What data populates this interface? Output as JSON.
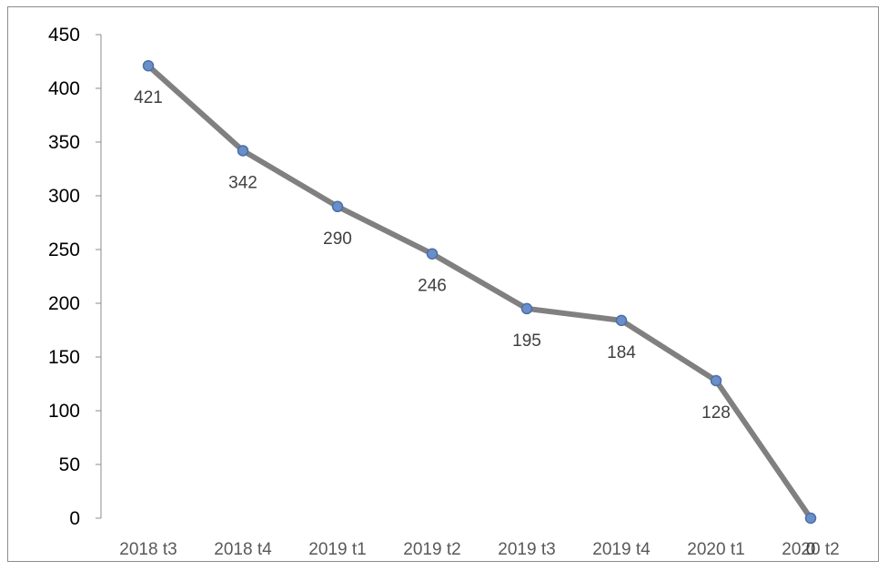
{
  "chart_data": {
    "type": "line",
    "title": "",
    "xlabel": "",
    "ylabel": "",
    "categories": [
      "2018 t3",
      "2018 t4",
      "2019 t1",
      "2019 t2",
      "2019 t3",
      "2019 t4",
      "2020 t1",
      "2020 t2"
    ],
    "series": [
      {
        "values": [
          421,
          342,
          290,
          246,
          195,
          184,
          128,
          0
        ],
        "data_labels": [
          "421",
          "342",
          "290",
          "246",
          "195",
          "184",
          "128",
          "0"
        ],
        "line_color": "#808080",
        "marker_color": "#6a8ec8"
      }
    ],
    "ylim": [
      0,
      450
    ],
    "yticks": [
      0,
      50,
      100,
      150,
      200,
      250,
      300,
      350,
      400,
      450
    ],
    "grid": false,
    "legend": "none"
  }
}
